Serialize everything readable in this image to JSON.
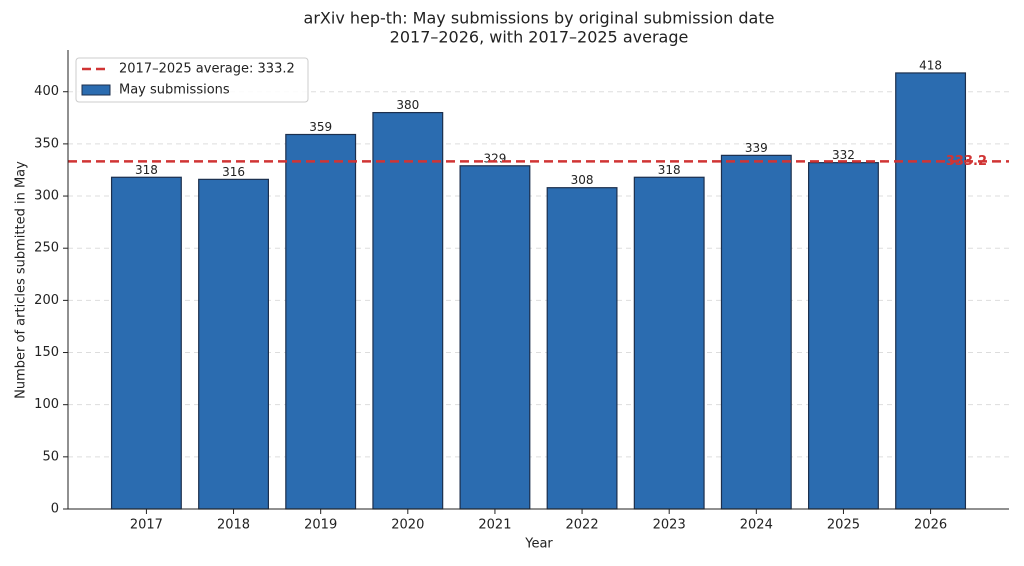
{
  "chart_data": {
    "type": "bar",
    "title": "arXiv hep-th: May submissions by original submission date",
    "subtitle": "2017–2026, with 2017–2025 average",
    "x_label": "Year",
    "y_label": "Number of articles submitted in May",
    "categories": [
      "2017",
      "2018",
      "2019",
      "2020",
      "2021",
      "2022",
      "2023",
      "2024",
      "2025",
      "2026"
    ],
    "series": [
      {
        "name": "May submissions",
        "color": "#2b6cb0",
        "edgecolor": "#1c2f4d",
        "values": [
          318,
          316,
          359,
          380,
          329,
          308,
          318,
          339,
          332,
          418
        ]
      }
    ],
    "reference_line": {
      "value": 333.2,
      "label": "2017–2025 average: 333.2",
      "color": "#d03434"
    },
    "ylim": [
      0,
      440
    ],
    "yticks": [
      0,
      50,
      100,
      150,
      200,
      250,
      300,
      350,
      400
    ],
    "grid": true,
    "legend": "upper left"
  }
}
